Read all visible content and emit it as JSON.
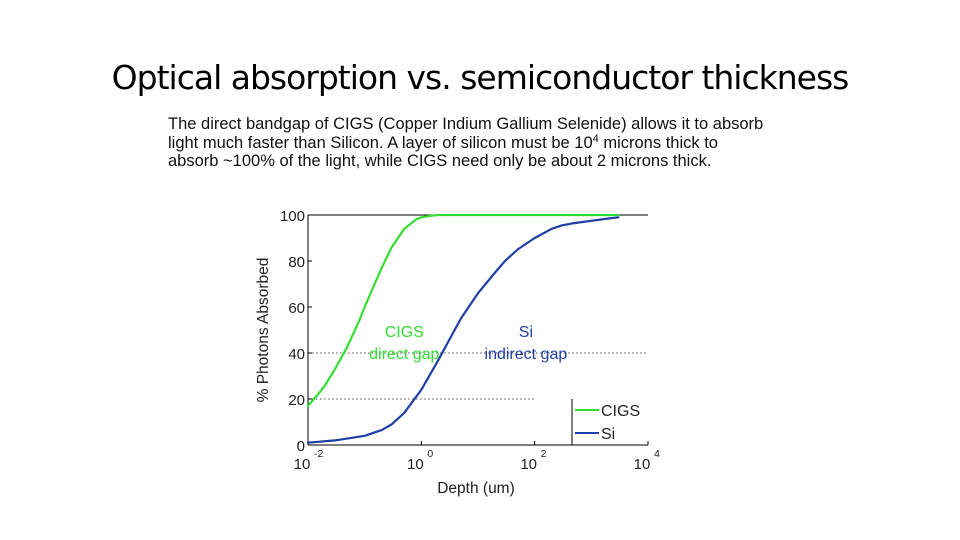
{
  "slide": {
    "title": "Optical absorption vs. semiconductor thickness",
    "description": {
      "part1": "The direct bandgap of CIGS (Copper Indium Gallium Selenide)  allows it to absorb light much faster than Silicon. A layer of silicon must be 10",
      "exp": "4",
      "part2": " microns thick to absorb ~100% of the light, while CIGS need only be about  2 microns thick."
    }
  },
  "colors": {
    "cigs": "#33dd33",
    "si": "#1f3fa6",
    "axis": "#000000",
    "guide": "#555555"
  },
  "chart_data": {
    "type": "line",
    "xscale": "log",
    "xlim": [
      0.01,
      10000
    ],
    "ylim": [
      0,
      100
    ],
    "xlabel": "Depth (um)",
    "ylabel": "% Photons Absorbed",
    "xticks": [
      {
        "value": 0.01,
        "base": "10",
        "exp": "-2"
      },
      {
        "value": 1,
        "base": "10",
        "exp": "0"
      },
      {
        "value": 100,
        "base": "10",
        "exp": "2"
      },
      {
        "value": 10000,
        "base": "10",
        "exp": "4"
      }
    ],
    "yticks": [
      0,
      20,
      40,
      60,
      80,
      100
    ],
    "guides": [
      {
        "y": 20,
        "x_to": 100
      },
      {
        "y": 40,
        "x_to": 10000
      }
    ],
    "series": [
      {
        "name": "CIGS",
        "color": "#33dd33",
        "x": [
          0.01,
          0.015,
          0.02,
          0.03,
          0.05,
          0.08,
          0.1,
          0.15,
          0.2,
          0.3,
          0.5,
          0.8,
          1,
          1.5,
          2,
          3,
          5,
          10,
          100,
          1000,
          3000
        ],
        "y": [
          17,
          22,
          26,
          33,
          43,
          54,
          60,
          70,
          77,
          86,
          94,
          98,
          99,
          99.7,
          100,
          100,
          100,
          100,
          100,
          100,
          100
        ]
      },
      {
        "name": "Si",
        "color": "#1f3fa6",
        "x": [
          0.01,
          0.03,
          0.1,
          0.2,
          0.3,
          0.5,
          1,
          2,
          3,
          5,
          10,
          20,
          30,
          50,
          100,
          200,
          300,
          500,
          1000,
          2000,
          3000
        ],
        "y": [
          1,
          2,
          4,
          6.5,
          9,
          14,
          24,
          37,
          45,
          55,
          66,
          75,
          80,
          85,
          90,
          94,
          95.5,
          96.5,
          97.5,
          98.5,
          99
        ]
      }
    ],
    "annotations": [
      {
        "text": "CIGS",
        "x": 0.5,
        "y": 47,
        "color": "#33dd33"
      },
      {
        "text": "direct gap",
        "x": 0.5,
        "y": 37.5,
        "color": "#33dd33"
      },
      {
        "text": "Si",
        "x": 70,
        "y": 47,
        "color": "#1f3fa6"
      },
      {
        "text": "indirect gap",
        "x": 70,
        "y": 37.5,
        "color": "#1f3fa6"
      }
    ],
    "legend": {
      "placement": "bottom-right",
      "entries": [
        {
          "label": "CIGS",
          "color": "#33dd33"
        },
        {
          "label": "Si",
          "color": "#1f3fa6"
        }
      ]
    }
  }
}
